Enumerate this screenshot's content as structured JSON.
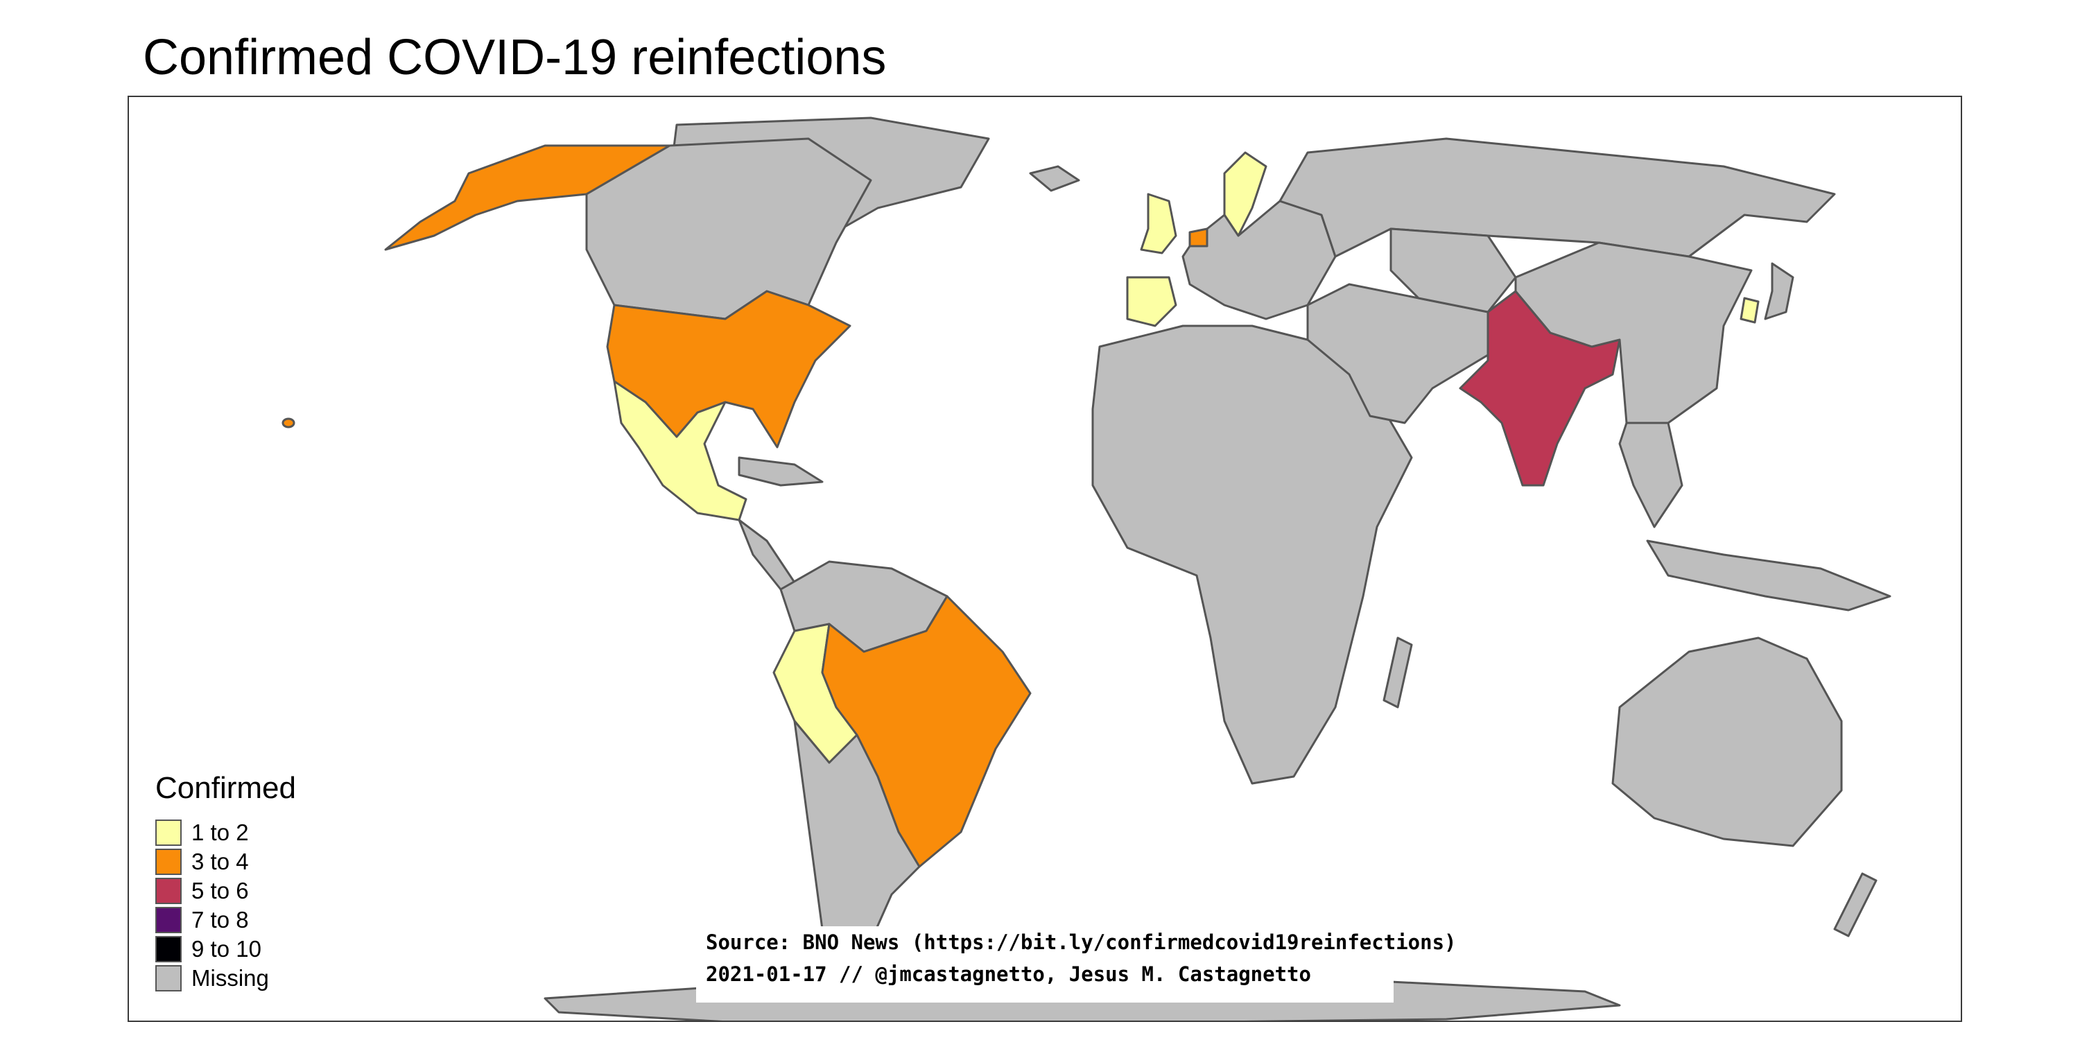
{
  "title": "Confirmed COVID-19 reinfections",
  "colors": {
    "c1to2": "#fcffa4",
    "c3to4": "#f98c0a",
    "c5to6": "#bc3754",
    "c7to8": "#57106e",
    "c9to10": "#000004",
    "missing": "#bebebe",
    "border": "#555555"
  },
  "legend": {
    "title": "Confirmed",
    "items": [
      {
        "label": "1 to 2",
        "color": "#fcffa4"
      },
      {
        "label": "3 to 4",
        "color": "#f98c0a"
      },
      {
        "label": "5 to 6",
        "color": "#bc3754"
      },
      {
        "label": "7 to 8",
        "color": "#57106e"
      },
      {
        "label": "9 to 10",
        "color": "#000004"
      },
      {
        "label": "Missing",
        "color": "#bebebe"
      }
    ]
  },
  "credits": {
    "source": "Source: BNO News (https://bit.ly/confirmedcovid19reinfections)",
    "author": "2021-01-17 // @jmcastagnetto, Jesus M. Castagnetto"
  },
  "regions": {
    "three_to_four": [
      "United States",
      "Brazil",
      "Netherlands"
    ],
    "one_to_two": [
      "Mexico",
      "Peru",
      "United Kingdom",
      "Spain",
      "Sweden",
      "South Korea"
    ],
    "five_to_six": [
      "India"
    ]
  }
}
